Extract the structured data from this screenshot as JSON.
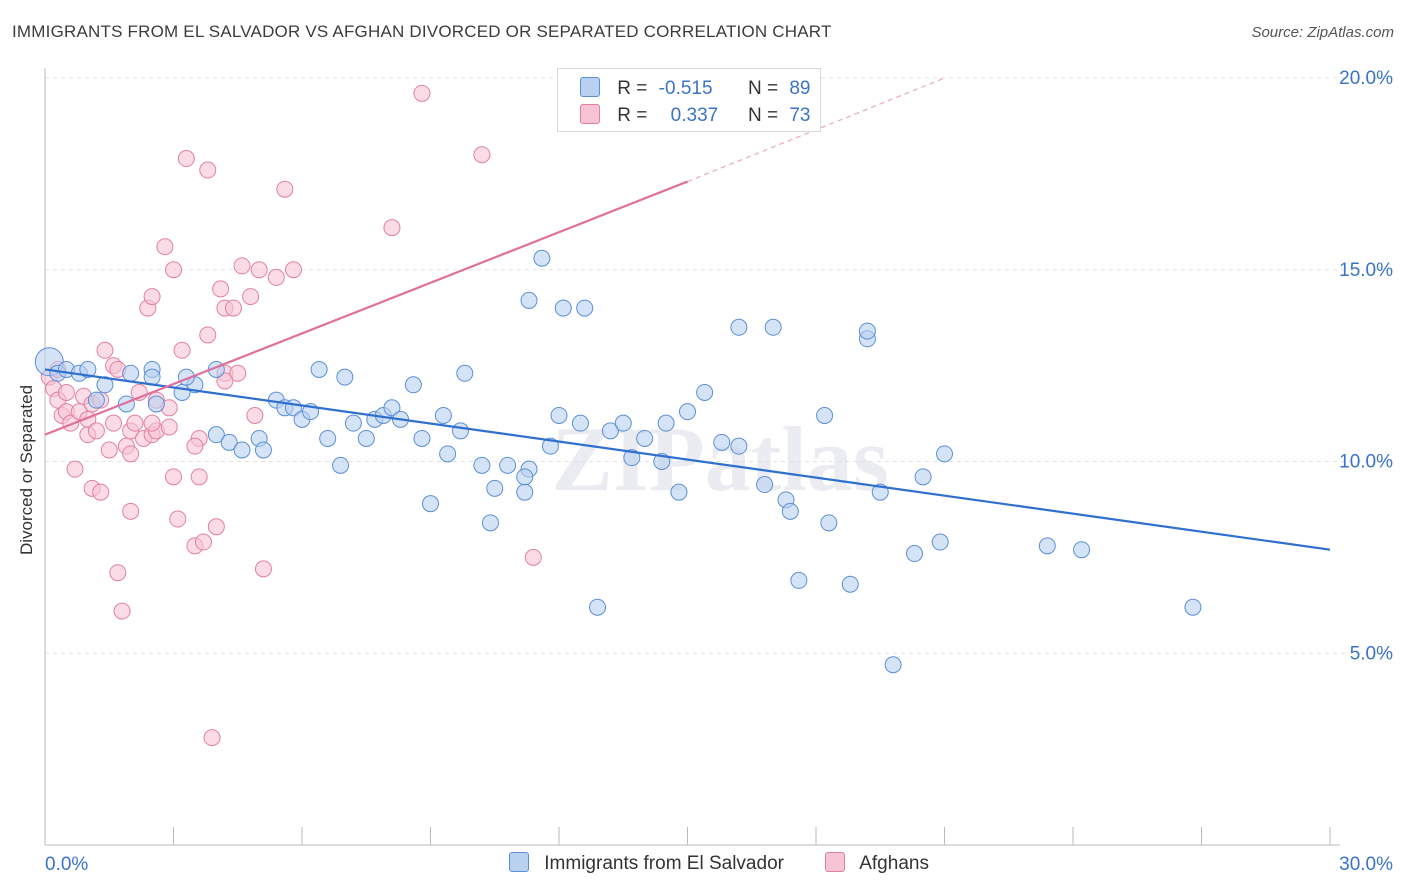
{
  "header": {
    "title": "IMMIGRANTS FROM EL SALVADOR VS AFGHAN DIVORCED OR SEPARATED CORRELATION CHART",
    "source": "Source: ZipAtlas.com"
  },
  "watermark": "ZIPatlas",
  "legend": {
    "rows": [
      {
        "r_label": "R =",
        "r_value": "-0.515",
        "n_label": "N =",
        "n_value": "89"
      },
      {
        "r_label": "R =",
        "r_value": "0.337",
        "n_label": "N =",
        "n_value": "73"
      }
    ]
  },
  "colors": {
    "blue_fill": "#b9d1f1",
    "blue_stroke": "#5b8fd6",
    "blue_line": "#2f6fce",
    "pink_fill": "#f8c4d5",
    "pink_stroke": "#e37fa3",
    "pink_line": "#e0709a",
    "grid": "#e2e2e2",
    "axis_label": "#3a73c9"
  },
  "chart_data": {
    "type": "scatter",
    "title": "IMMIGRANTS FROM EL SALVADOR VS AFGHAN DIVORCED OR SEPARATED CORRELATION CHART",
    "xlabel": "",
    "ylabel": "Divorced or Separated",
    "xlim": [
      0,
      30
    ],
    "ylim": [
      0,
      20
    ],
    "x_tick_labels": [
      "0.0%",
      "30.0%"
    ],
    "y_ticks": [
      5,
      10,
      15,
      20
    ],
    "y_tick_labels": [
      "5.0%",
      "10.0%",
      "15.0%",
      "20.0%"
    ],
    "legend": [
      "Immigrants from El Salvador",
      "Afghans"
    ],
    "series": [
      {
        "name": "Immigrants from El Salvador",
        "color": "blue",
        "r": -0.515,
        "n": 89,
        "trend": {
          "x0": 0,
          "y0": 12.4,
          "x1": 30,
          "y1": 7.7
        },
        "points": [
          [
            0.1,
            12.6
          ],
          [
            0.3,
            12.3
          ],
          [
            0.5,
            12.4
          ],
          [
            0.8,
            12.3
          ],
          [
            1.0,
            12.4
          ],
          [
            1.4,
            12.0
          ],
          [
            1.2,
            11.6
          ],
          [
            1.9,
            11.5
          ],
          [
            2.0,
            12.3
          ],
          [
            2.5,
            12.4
          ],
          [
            2.5,
            12.2
          ],
          [
            2.6,
            11.5
          ],
          [
            3.2,
            11.8
          ],
          [
            3.5,
            12.0
          ],
          [
            3.3,
            12.2
          ],
          [
            4.0,
            12.4
          ],
          [
            4.0,
            10.7
          ],
          [
            4.3,
            10.5
          ],
          [
            4.6,
            10.3
          ],
          [
            5.0,
            10.6
          ],
          [
            5.1,
            10.3
          ],
          [
            5.4,
            11.6
          ],
          [
            5.6,
            11.4
          ],
          [
            5.8,
            11.4
          ],
          [
            6.0,
            11.1
          ],
          [
            6.2,
            11.3
          ],
          [
            6.4,
            12.4
          ],
          [
            6.6,
            10.6
          ],
          [
            6.9,
            9.9
          ],
          [
            7.0,
            12.2
          ],
          [
            7.2,
            11.0
          ],
          [
            7.5,
            10.6
          ],
          [
            7.7,
            11.1
          ],
          [
            7.9,
            11.2
          ],
          [
            8.1,
            11.4
          ],
          [
            8.3,
            11.1
          ],
          [
            8.6,
            12.0
          ],
          [
            8.8,
            10.6
          ],
          [
            9.0,
            8.9
          ],
          [
            9.3,
            11.2
          ],
          [
            9.4,
            10.2
          ],
          [
            9.7,
            10.8
          ],
          [
            9.8,
            12.3
          ],
          [
            10.2,
            9.9
          ],
          [
            10.4,
            8.4
          ],
          [
            10.5,
            9.3
          ],
          [
            10.8,
            9.9
          ],
          [
            11.2,
            9.2
          ],
          [
            11.3,
            9.8
          ],
          [
            11.3,
            14.2
          ],
          [
            11.6,
            15.3
          ],
          [
            11.8,
            10.4
          ],
          [
            12.1,
            14.0
          ],
          [
            12.5,
            11.0
          ],
          [
            12.6,
            14.0
          ],
          [
            12.9,
            6.2
          ],
          [
            13.2,
            10.8
          ],
          [
            13.5,
            11.0
          ],
          [
            13.7,
            10.1
          ],
          [
            14.0,
            10.6
          ],
          [
            14.4,
            10.0
          ],
          [
            14.5,
            11.0
          ],
          [
            15.0,
            11.3
          ],
          [
            15.4,
            11.8
          ],
          [
            15.8,
            10.5
          ],
          [
            16.2,
            10.4
          ],
          [
            16.2,
            13.5
          ],
          [
            16.8,
            9.4
          ],
          [
            17.0,
            13.5
          ],
          [
            17.3,
            9.0
          ],
          [
            17.4,
            8.7
          ],
          [
            17.6,
            6.9
          ],
          [
            18.2,
            11.2
          ],
          [
            18.3,
            8.4
          ],
          [
            18.8,
            6.8
          ],
          [
            19.2,
            13.2
          ],
          [
            19.2,
            13.4
          ],
          [
            19.5,
            9.2
          ],
          [
            19.8,
            4.7
          ],
          [
            20.3,
            7.6
          ],
          [
            20.5,
            9.6
          ],
          [
            20.9,
            7.9
          ],
          [
            21.0,
            10.2
          ],
          [
            23.4,
            7.8
          ],
          [
            24.2,
            7.7
          ],
          [
            26.8,
            6.2
          ],
          [
            11.2,
            9.6
          ],
          [
            14.8,
            9.2
          ],
          [
            12.0,
            11.2
          ]
        ]
      },
      {
        "name": "Afghans",
        "color": "pink",
        "r": 0.337,
        "n": 73,
        "trend": {
          "x0": 0,
          "y0": 10.7,
          "x1": 15,
          "y1": 17.3,
          "dash_x1": 21,
          "dash_y1": 20.0
        },
        "points": [
          [
            0.1,
            12.2
          ],
          [
            0.2,
            11.9
          ],
          [
            0.3,
            11.6
          ],
          [
            0.4,
            11.2
          ],
          [
            0.5,
            11.8
          ],
          [
            0.5,
            11.3
          ],
          [
            0.6,
            11.0
          ],
          [
            0.7,
            9.8
          ],
          [
            0.8,
            11.3
          ],
          [
            0.9,
            11.7
          ],
          [
            1.0,
            10.7
          ],
          [
            1.0,
            11.1
          ],
          [
            1.1,
            11.5
          ],
          [
            1.2,
            10.8
          ],
          [
            1.1,
            9.3
          ],
          [
            1.3,
            9.2
          ],
          [
            1.3,
            11.6
          ],
          [
            1.4,
            12.9
          ],
          [
            1.5,
            10.3
          ],
          [
            1.6,
            11.0
          ],
          [
            1.6,
            12.5
          ],
          [
            1.7,
            12.4
          ],
          [
            1.7,
            7.1
          ],
          [
            1.8,
            6.1
          ],
          [
            1.9,
            10.4
          ],
          [
            2.0,
            10.2
          ],
          [
            2.0,
            10.8
          ],
          [
            2.0,
            8.7
          ],
          [
            2.1,
            11.0
          ],
          [
            2.2,
            11.8
          ],
          [
            2.3,
            10.6
          ],
          [
            2.4,
            14.0
          ],
          [
            2.5,
            14.3
          ],
          [
            2.5,
            10.7
          ],
          [
            2.6,
            11.6
          ],
          [
            2.6,
            10.8
          ],
          [
            2.8,
            15.6
          ],
          [
            2.9,
            11.4
          ],
          [
            2.9,
            10.9
          ],
          [
            3.0,
            15.0
          ],
          [
            3.0,
            9.6
          ],
          [
            3.1,
            8.5
          ],
          [
            3.2,
            12.9
          ],
          [
            3.3,
            17.9
          ],
          [
            3.5,
            7.8
          ],
          [
            3.6,
            10.6
          ],
          [
            3.6,
            9.6
          ],
          [
            3.7,
            7.9
          ],
          [
            3.8,
            17.6
          ],
          [
            3.8,
            13.3
          ],
          [
            3.9,
            2.8
          ],
          [
            4.0,
            8.3
          ],
          [
            4.1,
            14.5
          ],
          [
            4.2,
            14.0
          ],
          [
            4.2,
            12.3
          ],
          [
            4.4,
            14.0
          ],
          [
            4.5,
            12.3
          ],
          [
            4.6,
            15.1
          ],
          [
            4.8,
            14.3
          ],
          [
            4.9,
            11.2
          ],
          [
            5.0,
            15.0
          ],
          [
            5.1,
            7.2
          ],
          [
            5.4,
            14.8
          ],
          [
            5.6,
            17.1
          ],
          [
            5.8,
            15.0
          ],
          [
            8.1,
            16.1
          ],
          [
            8.8,
            19.6
          ],
          [
            10.2,
            18.0
          ],
          [
            11.4,
            7.5
          ],
          [
            0.3,
            12.4
          ],
          [
            4.2,
            12.1
          ],
          [
            2.5,
            11.0
          ],
          [
            3.5,
            10.4
          ]
        ]
      }
    ]
  }
}
